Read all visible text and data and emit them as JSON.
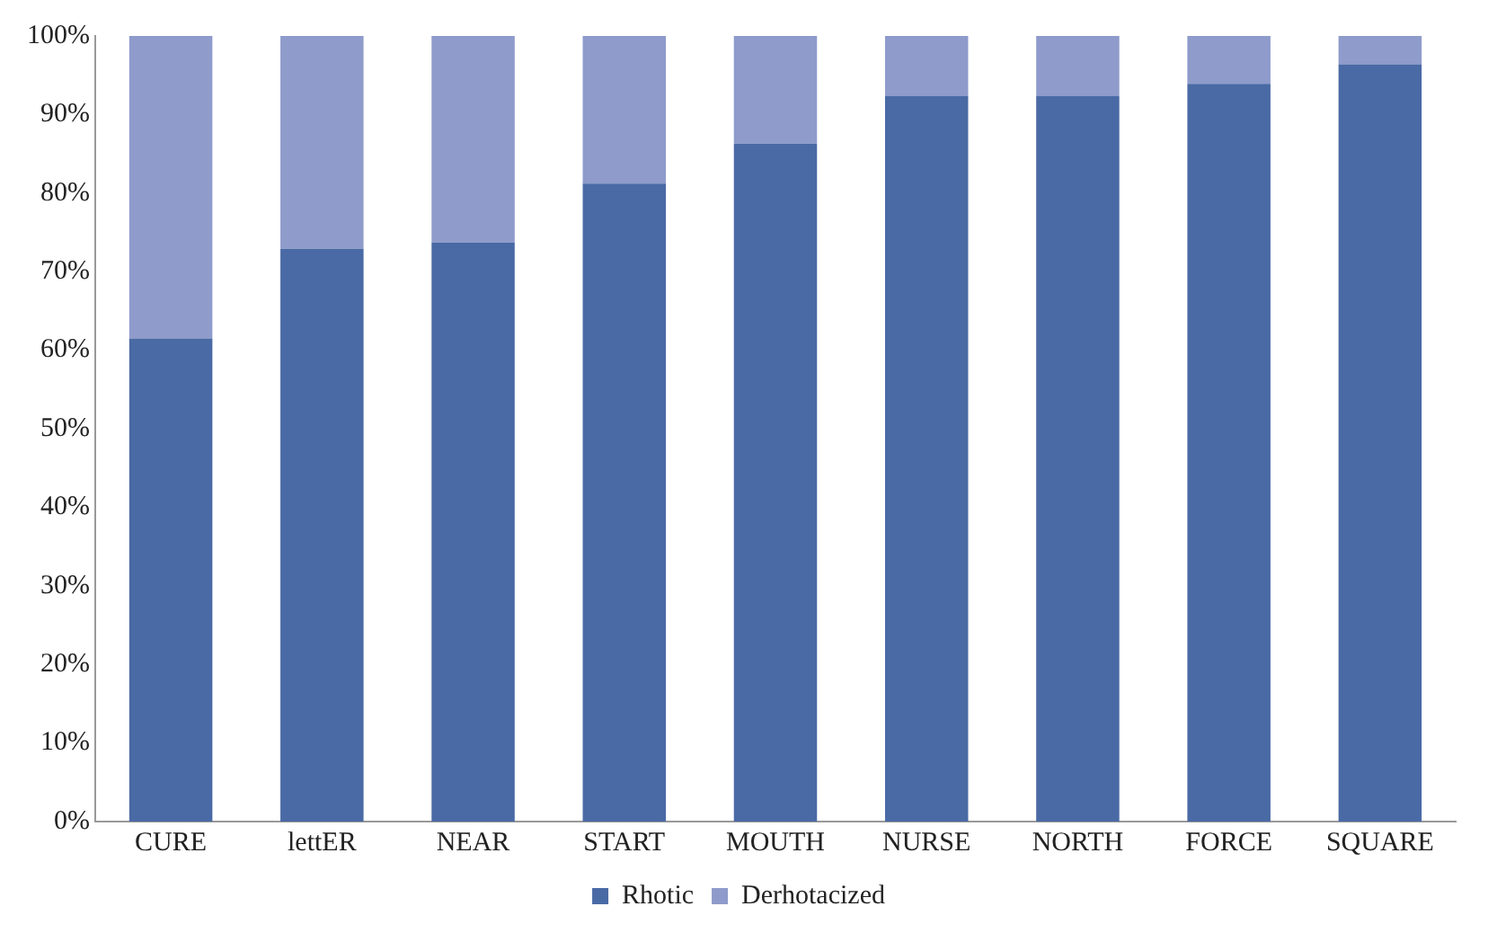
{
  "chart_data": {
    "type": "bar",
    "stacked": true,
    "categories": [
      "CURE",
      "lettER",
      "NEAR",
      "START",
      "MOUTH",
      "NURSE",
      "NORTH",
      "FORCE",
      "SQUARE"
    ],
    "series": [
      {
        "name": "Rhotic",
        "color": "#4a6aa5",
        "values": [
          61.5,
          72.9,
          73.7,
          81.2,
          86.3,
          92.4,
          92.4,
          93.9,
          96.4
        ]
      },
      {
        "name": "Derhotacized",
        "color": "#8e9bcb",
        "values": [
          38.5,
          27.1,
          26.3,
          18.8,
          13.7,
          7.6,
          7.6,
          6.1,
          3.6
        ]
      }
    ],
    "ylim": [
      0,
      100
    ],
    "yticks": [
      {
        "value": 0,
        "label": "0%"
      },
      {
        "value": 10,
        "label": "10%"
      },
      {
        "value": 20,
        "label": "20%"
      },
      {
        "value": 30,
        "label": "30%"
      },
      {
        "value": 40,
        "label": "40%"
      },
      {
        "value": 50,
        "label": "50%"
      },
      {
        "value": 60,
        "label": "60%"
      },
      {
        "value": 70,
        "label": "70%"
      },
      {
        "value": 80,
        "label": "80%"
      },
      {
        "value": 90,
        "label": "90%"
      },
      {
        "value": 100,
        "label": "100%"
      }
    ],
    "grid": false,
    "legend": "bottom"
  }
}
